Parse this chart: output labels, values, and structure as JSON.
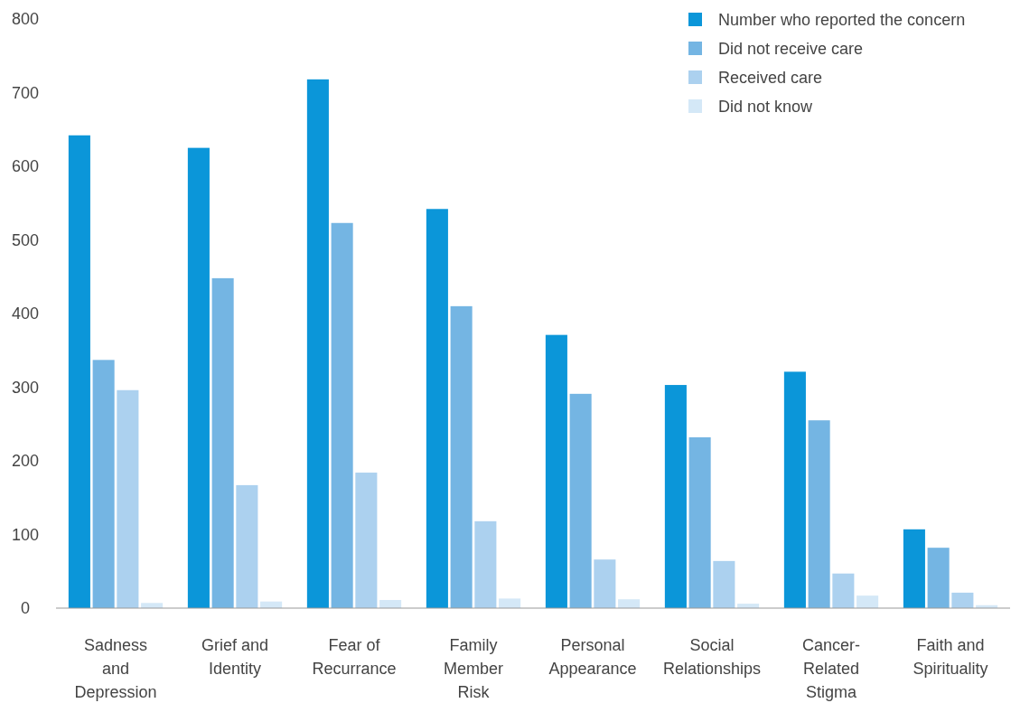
{
  "chart_data": {
    "type": "bar",
    "categories": [
      "Sadness and Depression",
      "Grief and Identity",
      "Fear of Recurrance",
      "Family Member Risk",
      "Personal Appearance",
      "Social Relationships",
      "Cancer-Related Stigma",
      "Faith and Spirituality"
    ],
    "series": [
      {
        "name": "Number who reported the concern",
        "color": "#0b96d9",
        "values": [
          642,
          625,
          718,
          542,
          371,
          303,
          321,
          107
        ]
      },
      {
        "name": "Did not receive care",
        "color": "#74b5e3",
        "values": [
          337,
          448,
          523,
          410,
          291,
          232,
          255,
          82
        ]
      },
      {
        "name": "Received care",
        "color": "#acd1ef",
        "values": [
          296,
          167,
          184,
          118,
          66,
          64,
          47,
          21
        ]
      },
      {
        "name": "Did not know",
        "color": "#d4e8f7",
        "values": [
          7,
          9,
          11,
          13,
          12,
          6,
          17,
          4
        ]
      }
    ],
    "ylim": [
      0,
      800
    ],
    "yticks": [
      0,
      100,
      200,
      300,
      400,
      500,
      600,
      700,
      800
    ],
    "grid": false,
    "legend": "top right"
  }
}
